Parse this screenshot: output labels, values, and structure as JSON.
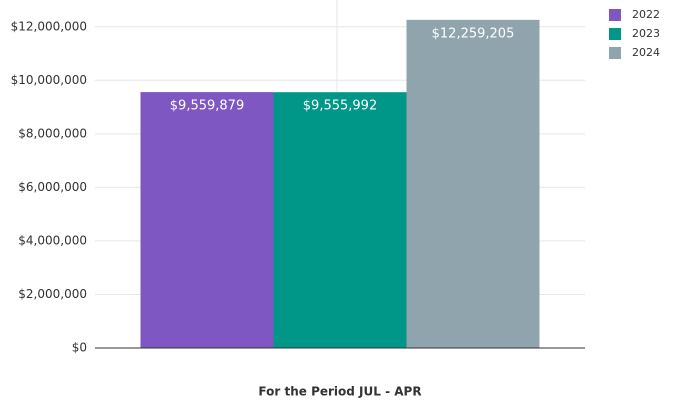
{
  "chart_data": {
    "type": "bar",
    "categories": [
      "For the Period JUL - APR"
    ],
    "series": [
      {
        "name": "2022",
        "color": "#7e57c2",
        "values": [
          9559879
        ],
        "value_labels": [
          "$9,559,879"
        ]
      },
      {
        "name": "2023",
        "color": "#009688",
        "values": [
          9555992
        ],
        "value_labels": [
          "$9,555,992"
        ]
      },
      {
        "name": "2024",
        "color": "#90a4ae",
        "values": [
          12259205
        ],
        "value_labels": [
          "$12,259,205"
        ]
      }
    ],
    "ylim": [
      0,
      13000000
    ],
    "yticks": [
      {
        "value": 0,
        "label": "$0"
      },
      {
        "value": 2000000,
        "label": "$2,000,000"
      },
      {
        "value": 4000000,
        "label": "$4,000,000"
      },
      {
        "value": 6000000,
        "label": "$6,000,000"
      },
      {
        "value": 8000000,
        "label": "$8,000,000"
      },
      {
        "value": 10000000,
        "label": "$10,000,000"
      },
      {
        "value": 12000000,
        "label": "$12,000,000"
      }
    ],
    "grid": true,
    "legend": "top-right"
  }
}
